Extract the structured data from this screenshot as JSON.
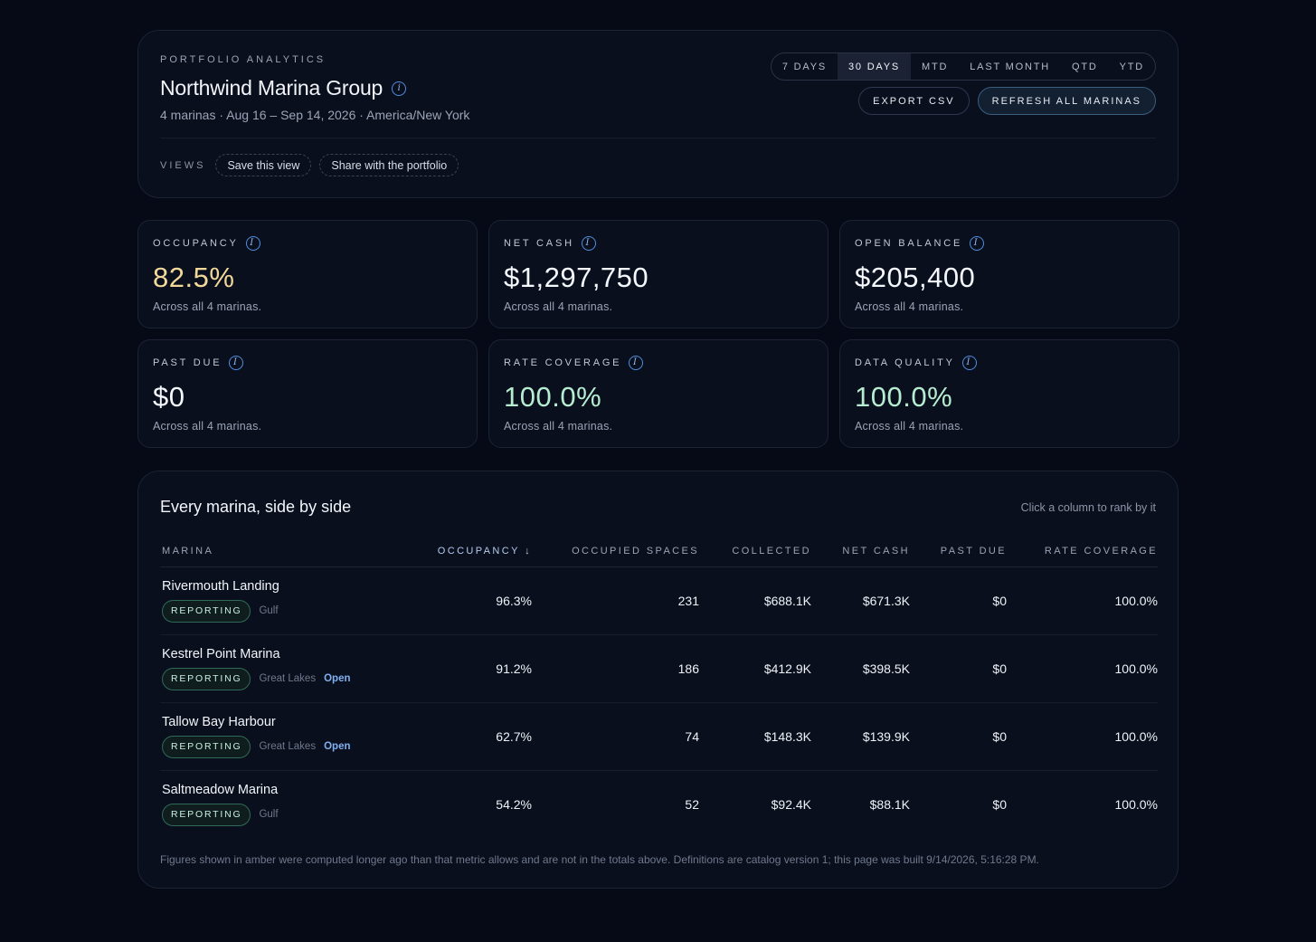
{
  "header": {
    "eyebrow": "PORTFOLIO ANALYTICS",
    "title": "Northwind Marina Group",
    "subtitle": "4 marinas · Aug 16 – Sep 14, 2026 · America/New York",
    "ranges": [
      "7 DAYS",
      "30 DAYS",
      "MTD",
      "LAST MONTH",
      "QTD",
      "YTD"
    ],
    "active_range": "30 DAYS",
    "export_label": "EXPORT CSV",
    "refresh_label": "REFRESH ALL MARINAS",
    "views_label": "VIEWS",
    "save_view_label": "Save this view",
    "share_label": "Share with the portfolio"
  },
  "kpis": [
    {
      "label": "OCCUPANCY",
      "value": "82.5%",
      "tone": "amber",
      "foot": "Across all 4 marinas."
    },
    {
      "label": "NET CASH",
      "value": "$1,297,750",
      "tone": "white",
      "foot": "Across all 4 marinas."
    },
    {
      "label": "OPEN BALANCE",
      "value": "$205,400",
      "tone": "white",
      "foot": "Across all 4 marinas."
    },
    {
      "label": "PAST DUE",
      "value": "$0",
      "tone": "white",
      "foot": "Across all 4 marinas."
    },
    {
      "label": "RATE COVERAGE",
      "value": "100.0%",
      "tone": "green",
      "foot": "Across all 4 marinas."
    },
    {
      "label": "DATA QUALITY",
      "value": "100.0%",
      "tone": "green",
      "foot": "Across all 4 marinas."
    }
  ],
  "table": {
    "title": "Every marina, side by side",
    "hint": "Click a column to rank by it",
    "columns": [
      "MARINA",
      "OCCUPANCY ↓",
      "OCCUPIED SPACES",
      "COLLECTED",
      "NET CASH",
      "PAST DUE",
      "RATE COVERAGE"
    ],
    "rows": [
      {
        "name": "Rivermouth Landing",
        "status": "REPORTING",
        "region": "Gulf",
        "open": "",
        "occupancy": "96.3%",
        "spaces": "231",
        "collected": "$688.1K",
        "net_cash": "$671.3K",
        "past_due": "$0",
        "rate_coverage": "100.0%"
      },
      {
        "name": "Kestrel Point Marina",
        "status": "REPORTING",
        "region": "Great Lakes",
        "open": "Open",
        "occupancy": "91.2%",
        "spaces": "186",
        "collected": "$412.9K",
        "net_cash": "$398.5K",
        "past_due": "$0",
        "rate_coverage": "100.0%"
      },
      {
        "name": "Tallow Bay Harbour",
        "status": "REPORTING",
        "region": "Great Lakes",
        "open": "Open",
        "occupancy": "62.7%",
        "spaces": "74",
        "collected": "$148.3K",
        "net_cash": "$139.9K",
        "past_due": "$0",
        "rate_coverage": "100.0%"
      },
      {
        "name": "Saltmeadow Marina",
        "status": "REPORTING",
        "region": "Gulf",
        "open": "",
        "occupancy": "54.2%",
        "spaces": "52",
        "collected": "$92.4K",
        "net_cash": "$88.1K",
        "past_due": "$0",
        "rate_coverage": "100.0%"
      }
    ],
    "footnote": "Figures shown in amber were computed longer ago than that metric allows and are not in the totals above. Definitions are catalog version 1; this page was built 9/14/2026, 5:16:28 PM."
  },
  "icons": {
    "info": "info-icon"
  },
  "colors": {
    "background": "#060a17",
    "card": "#0a0f1d",
    "amber_value": "#f2d99a",
    "green_value": "#b6ecd0",
    "accent_blue": "#7fb0f0",
    "badge_border": "#2f6a56"
  }
}
